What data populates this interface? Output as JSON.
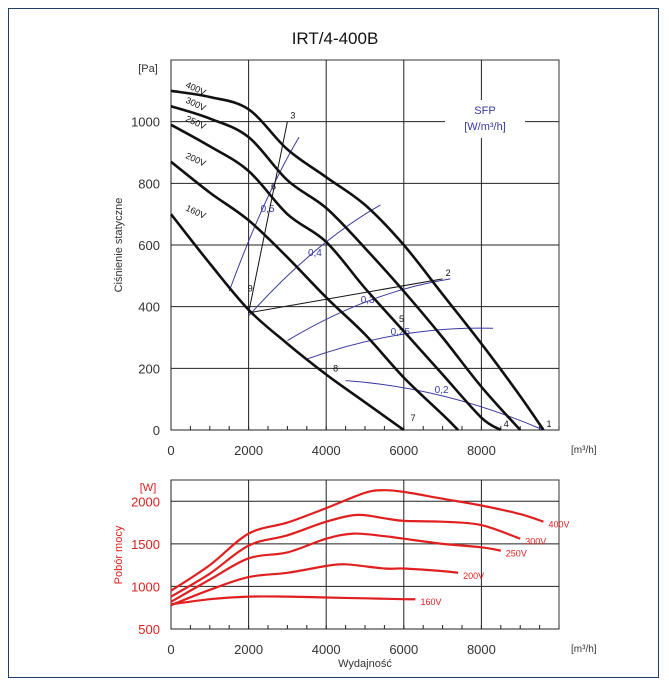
{
  "chart_data": [
    {
      "type": "line",
      "title": "IRT/4-400B",
      "ylabel": "Ciśnienie statyczne",
      "yunit": "[Pa]",
      "xunit": "[m³/h]",
      "xlim": [
        0,
        10000
      ],
      "ylim": [
        0,
        1200
      ],
      "xticks": [
        "0",
        "2000",
        "4000",
        "6000",
        "8000"
      ],
      "yticks": [
        "0",
        "200",
        "400",
        "600",
        "800",
        "1000"
      ],
      "grid": true,
      "series": [
        {
          "name": "400V",
          "color": "#111111",
          "x": [
            0,
            1000,
            2000,
            3000,
            4000,
            5000,
            6000,
            7000,
            8000,
            9000,
            9600
          ],
          "y": [
            1100,
            1080,
            1040,
            910,
            820,
            730,
            600,
            440,
            280,
            110,
            0
          ]
        },
        {
          "name": "300V",
          "color": "#111111",
          "x": [
            0,
            1000,
            2000,
            3000,
            4000,
            5000,
            6000,
            7000,
            8000,
            9000
          ],
          "y": [
            1050,
            1010,
            950,
            810,
            720,
            590,
            450,
            300,
            140,
            0
          ]
        },
        {
          "name": "250V",
          "color": "#111111",
          "x": [
            0,
            1000,
            2000,
            3000,
            4000,
            5000,
            6000,
            7000,
            8000,
            8500
          ],
          "y": [
            990,
            920,
            840,
            700,
            610,
            460,
            320,
            180,
            40,
            0
          ]
        },
        {
          "name": "200V",
          "color": "#111111",
          "x": [
            0,
            1000,
            2000,
            3000,
            4000,
            5000,
            6000,
            7000,
            7400
          ],
          "y": [
            870,
            770,
            680,
            560,
            430,
            310,
            170,
            50,
            0
          ]
        },
        {
          "name": "160V",
          "color": "#111111",
          "x": [
            0,
            1000,
            2000,
            3000,
            4000,
            5000,
            6000
          ],
          "y": [
            700,
            540,
            390,
            280,
            180,
            90,
            0
          ]
        }
      ],
      "operating_lines": [
        {
          "label": "1",
          "x": [
            9600
          ],
          "y": [
            0
          ]
        },
        {
          "label": "2",
          "x": [
            2000,
            7000
          ],
          "y": [
            380,
            490
          ]
        },
        {
          "label": "3",
          "x": [
            2000,
            3000
          ],
          "y": [
            380,
            1000
          ]
        },
        {
          "label": "4",
          "x": [
            8500
          ],
          "y": [
            0
          ]
        },
        {
          "label": "5",
          "x": [
            5800
          ],
          "y": [
            340
          ]
        },
        {
          "label": "6",
          "x": [
            2500
          ],
          "y": [
            770
          ]
        },
        {
          "label": "7",
          "x": [
            6100
          ],
          "y": [
            20
          ]
        },
        {
          "label": "8",
          "x": [
            4100
          ],
          "y": [
            180
          ]
        },
        {
          "label": "9",
          "x": [
            1900
          ],
          "y": [
            440
          ]
        }
      ],
      "sfp": {
        "title": "SFP",
        "unit": "[W/m³/h]",
        "color": "#3a3aa0",
        "levels": [
          {
            "label": "0,5",
            "x": [
              1500,
              3300
            ],
            "y": [
              450,
              950
            ]
          },
          {
            "label": "0,4",
            "x": [
              2000,
              5400
            ],
            "y": [
              370,
              730
            ]
          },
          {
            "label": "0,3",
            "x": [
              3000,
              7200
            ],
            "y": [
              290,
              490
            ]
          },
          {
            "label": "0,25",
            "x": [
              3500,
              8300
            ],
            "y": [
              230,
              330
            ]
          },
          {
            "label": "0,2",
            "x": [
              4500,
              9600
            ],
            "y": [
              160,
              0
            ]
          }
        ]
      }
    },
    {
      "type": "line",
      "ylabel": "Pobór mocy",
      "yunit": "[W]",
      "xlabel": "Wydajność",
      "xunit": "[m³/h]",
      "xlim": [
        0,
        10000
      ],
      "ylim": [
        500,
        2250
      ],
      "xticks": [
        "0",
        "2000",
        "4000",
        "6000",
        "8000"
      ],
      "yticks": [
        "500",
        "1000",
        "1500",
        "2000"
      ],
      "grid": true,
      "color": "#e02020",
      "series": [
        {
          "name": "400V",
          "x": [
            0,
            1000,
            2000,
            3000,
            4000,
            5000,
            5500,
            6000,
            7000,
            8000,
            9000,
            9600
          ],
          "y": [
            950,
            1250,
            1620,
            1750,
            1920,
            2100,
            2130,
            2110,
            2030,
            1950,
            1850,
            1760
          ]
        },
        {
          "name": "300V",
          "x": [
            0,
            1000,
            2000,
            3000,
            4000,
            4800,
            5500,
            6000,
            7000,
            8000,
            9000
          ],
          "y": [
            880,
            1150,
            1480,
            1600,
            1760,
            1840,
            1800,
            1770,
            1760,
            1720,
            1560
          ]
        },
        {
          "name": "250V",
          "x": [
            0,
            1000,
            2000,
            3000,
            4000,
            4700,
            5500,
            6000,
            7000,
            8000,
            8500
          ],
          "y": [
            820,
            1080,
            1330,
            1400,
            1560,
            1620,
            1590,
            1560,
            1500,
            1460,
            1420
          ]
        },
        {
          "name": "200V",
          "x": [
            0,
            1000,
            2000,
            3000,
            4000,
            4500,
            5500,
            6000,
            7000,
            7400
          ],
          "y": [
            780,
            960,
            1110,
            1160,
            1240,
            1260,
            1210,
            1210,
            1180,
            1160
          ]
        },
        {
          "name": "160V",
          "x": [
            0,
            1000,
            2000,
            3000,
            4000,
            5000,
            6000,
            6300
          ],
          "y": [
            790,
            850,
            880,
            880,
            870,
            860,
            850,
            850
          ]
        }
      ]
    }
  ]
}
